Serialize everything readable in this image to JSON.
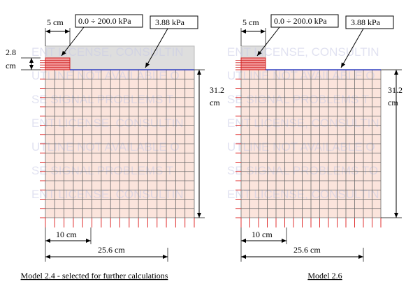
{
  "panels": [
    {
      "load_width": "5 cm",
      "load_range": "0.0 ÷ 200.0 kPa",
      "surcharge": "3.88 kPa",
      "load_height": {
        "value": "2.8",
        "unit": "cm"
      },
      "height": {
        "value": "31.2",
        "unit": "cm"
      },
      "cell_width": "10 cm",
      "width": "25.6 cm",
      "watermark": [
        "ENT LICENSE, CONSULTIN",
        "UTLINE NOT AVAILABLE O",
        "SE SIGNAL PROBLEMS T",
        "ENT LICENSE, CONSULTIN",
        "UTLINE NOT AVAILABLE O",
        "SE SIGNAL PROBLEMS T",
        "ENT LICENSE, CONSULTIN"
      ],
      "caption": "Model 2.4 - selected for further calculations"
    },
    {
      "load_width": "5 cm",
      "load_range": "0.0 ÷ 200.0 kPa",
      "surcharge": "3.88 kPa",
      "height": {
        "value": "31.2",
        "unit": "cm"
      },
      "cell_width": "10 cm",
      "width": "25.6 cm",
      "watermark": [
        "ENT LICENSE, CONSULTIN",
        "UTLINE NOT AVAILABLE O",
        "SE SIGNAL PROBLEMS T",
        "ENT LICENSE, CONSULTIN",
        "UTLINE NOT AVAILABLE O",
        "SE SIGNAL PROBLEMS TO",
        "ENT LICENSE, CONSULTIN"
      ],
      "caption": "Model 2.6"
    }
  ]
}
